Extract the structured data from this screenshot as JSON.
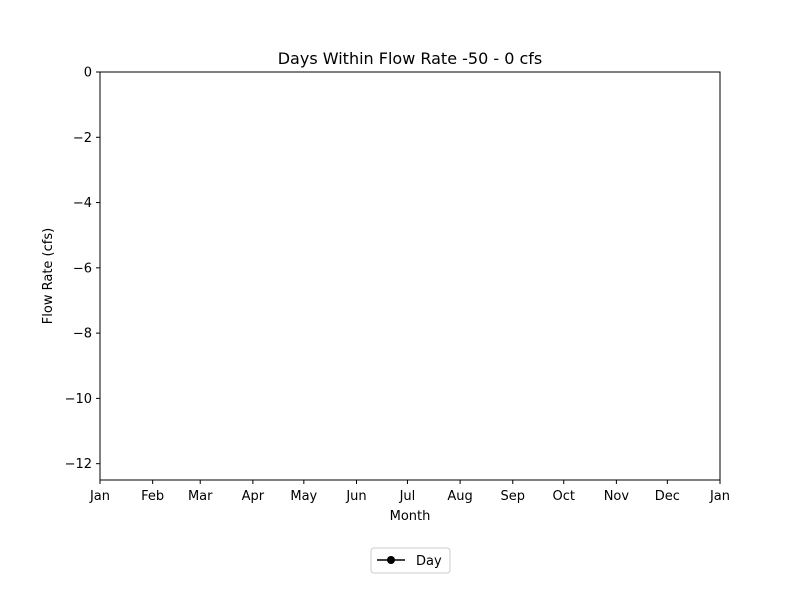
{
  "chart_data": {
    "type": "line",
    "title": "Days Within Flow Rate -50 - 0 cfs",
    "xlabel": "Month",
    "ylabel": "Flow Rate (cfs)",
    "x_tick_labels": [
      "Jan",
      "Feb",
      "Mar",
      "Apr",
      "May",
      "Jun",
      "Jul",
      "Aug",
      "Sep",
      "Oct",
      "Nov",
      "Dec",
      "Jan"
    ],
    "x_tick_days": [
      0,
      31,
      59,
      90,
      120,
      151,
      181,
      212,
      243,
      273,
      304,
      334,
      365
    ],
    "xlim": [
      0,
      365
    ],
    "ylim": [
      -12.5,
      0
    ],
    "y_ticks": [
      0,
      -2,
      -4,
      -6,
      -8,
      -10,
      -12
    ],
    "y_tick_labels": [
      "0",
      "−2",
      "−4",
      "−6",
      "−8",
      "−10",
      "−12"
    ],
    "grid": false,
    "legend_position": "bottom-center",
    "series": [
      {
        "name": "Day",
        "color": "#000000",
        "marker": "circle",
        "values": []
      }
    ]
  }
}
